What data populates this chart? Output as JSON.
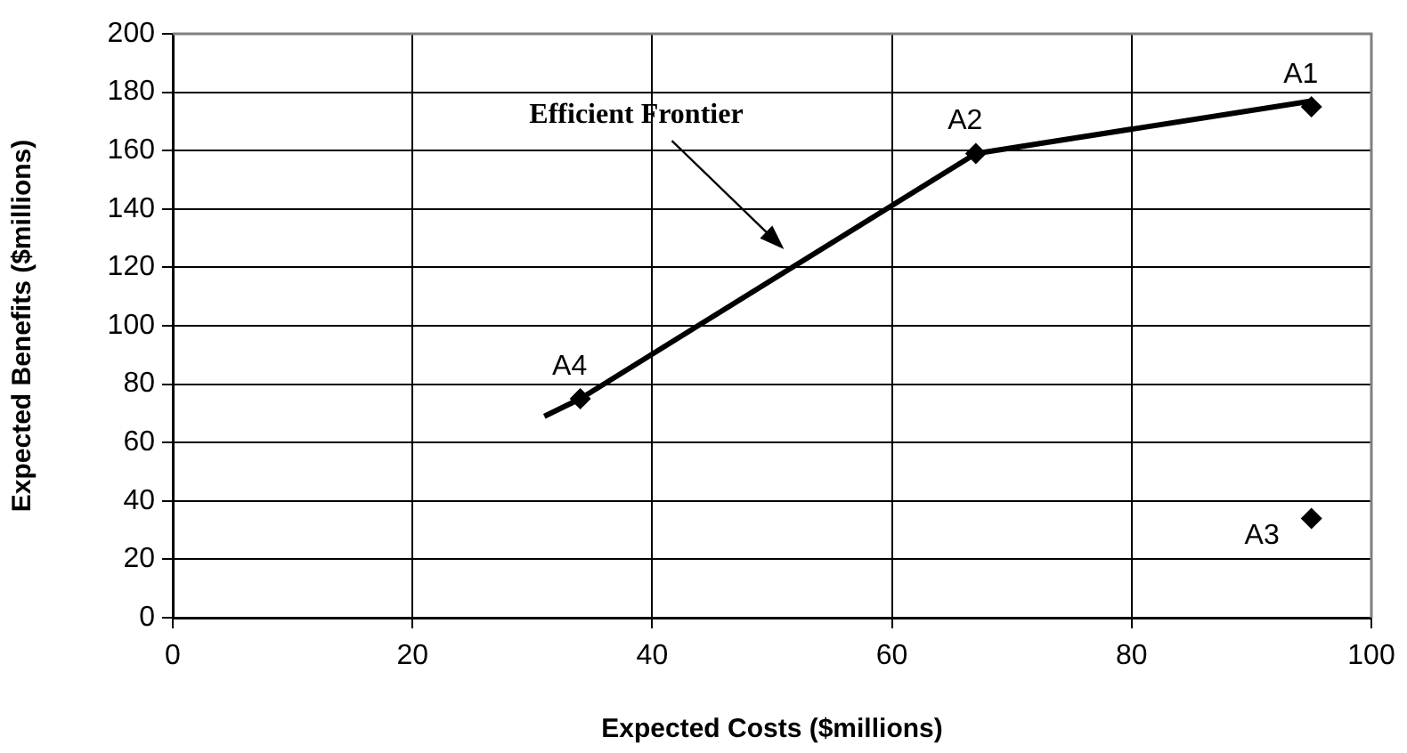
{
  "chart_data": {
    "type": "scatter",
    "xlabel": "Expected Costs ($millions)",
    "ylabel": "Expected Benefits ($millions)",
    "xlim": [
      0,
      100
    ],
    "xticks": [
      0,
      20,
      40,
      60,
      80,
      100
    ],
    "ylim": [
      0,
      200
    ],
    "yticks": [
      0,
      20,
      40,
      60,
      80,
      100,
      120,
      140,
      160,
      180,
      200
    ],
    "grid": true,
    "marker": "diamond",
    "series": [
      {
        "type": "line",
        "color": "#000000",
        "x": [
          31,
          34,
          67,
          95
        ],
        "values": [
          69,
          75,
          159,
          177
        ],
        "marker": "none"
      },
      {
        "color": "#000000",
        "x": [
          95,
          67,
          95,
          34
        ],
        "values": [
          175,
          159,
          34,
          75
        ]
      }
    ],
    "annotations": [
      "Efficient Frontier",
      {
        "text": "A1",
        "x": 95,
        "y": 175
      },
      {
        "text": "A2",
        "x": 67,
        "y": 159
      },
      {
        "text": "A3",
        "x": 95,
        "y": 34
      },
      {
        "text": "A4",
        "x": 34,
        "y": 75
      }
    ]
  }
}
